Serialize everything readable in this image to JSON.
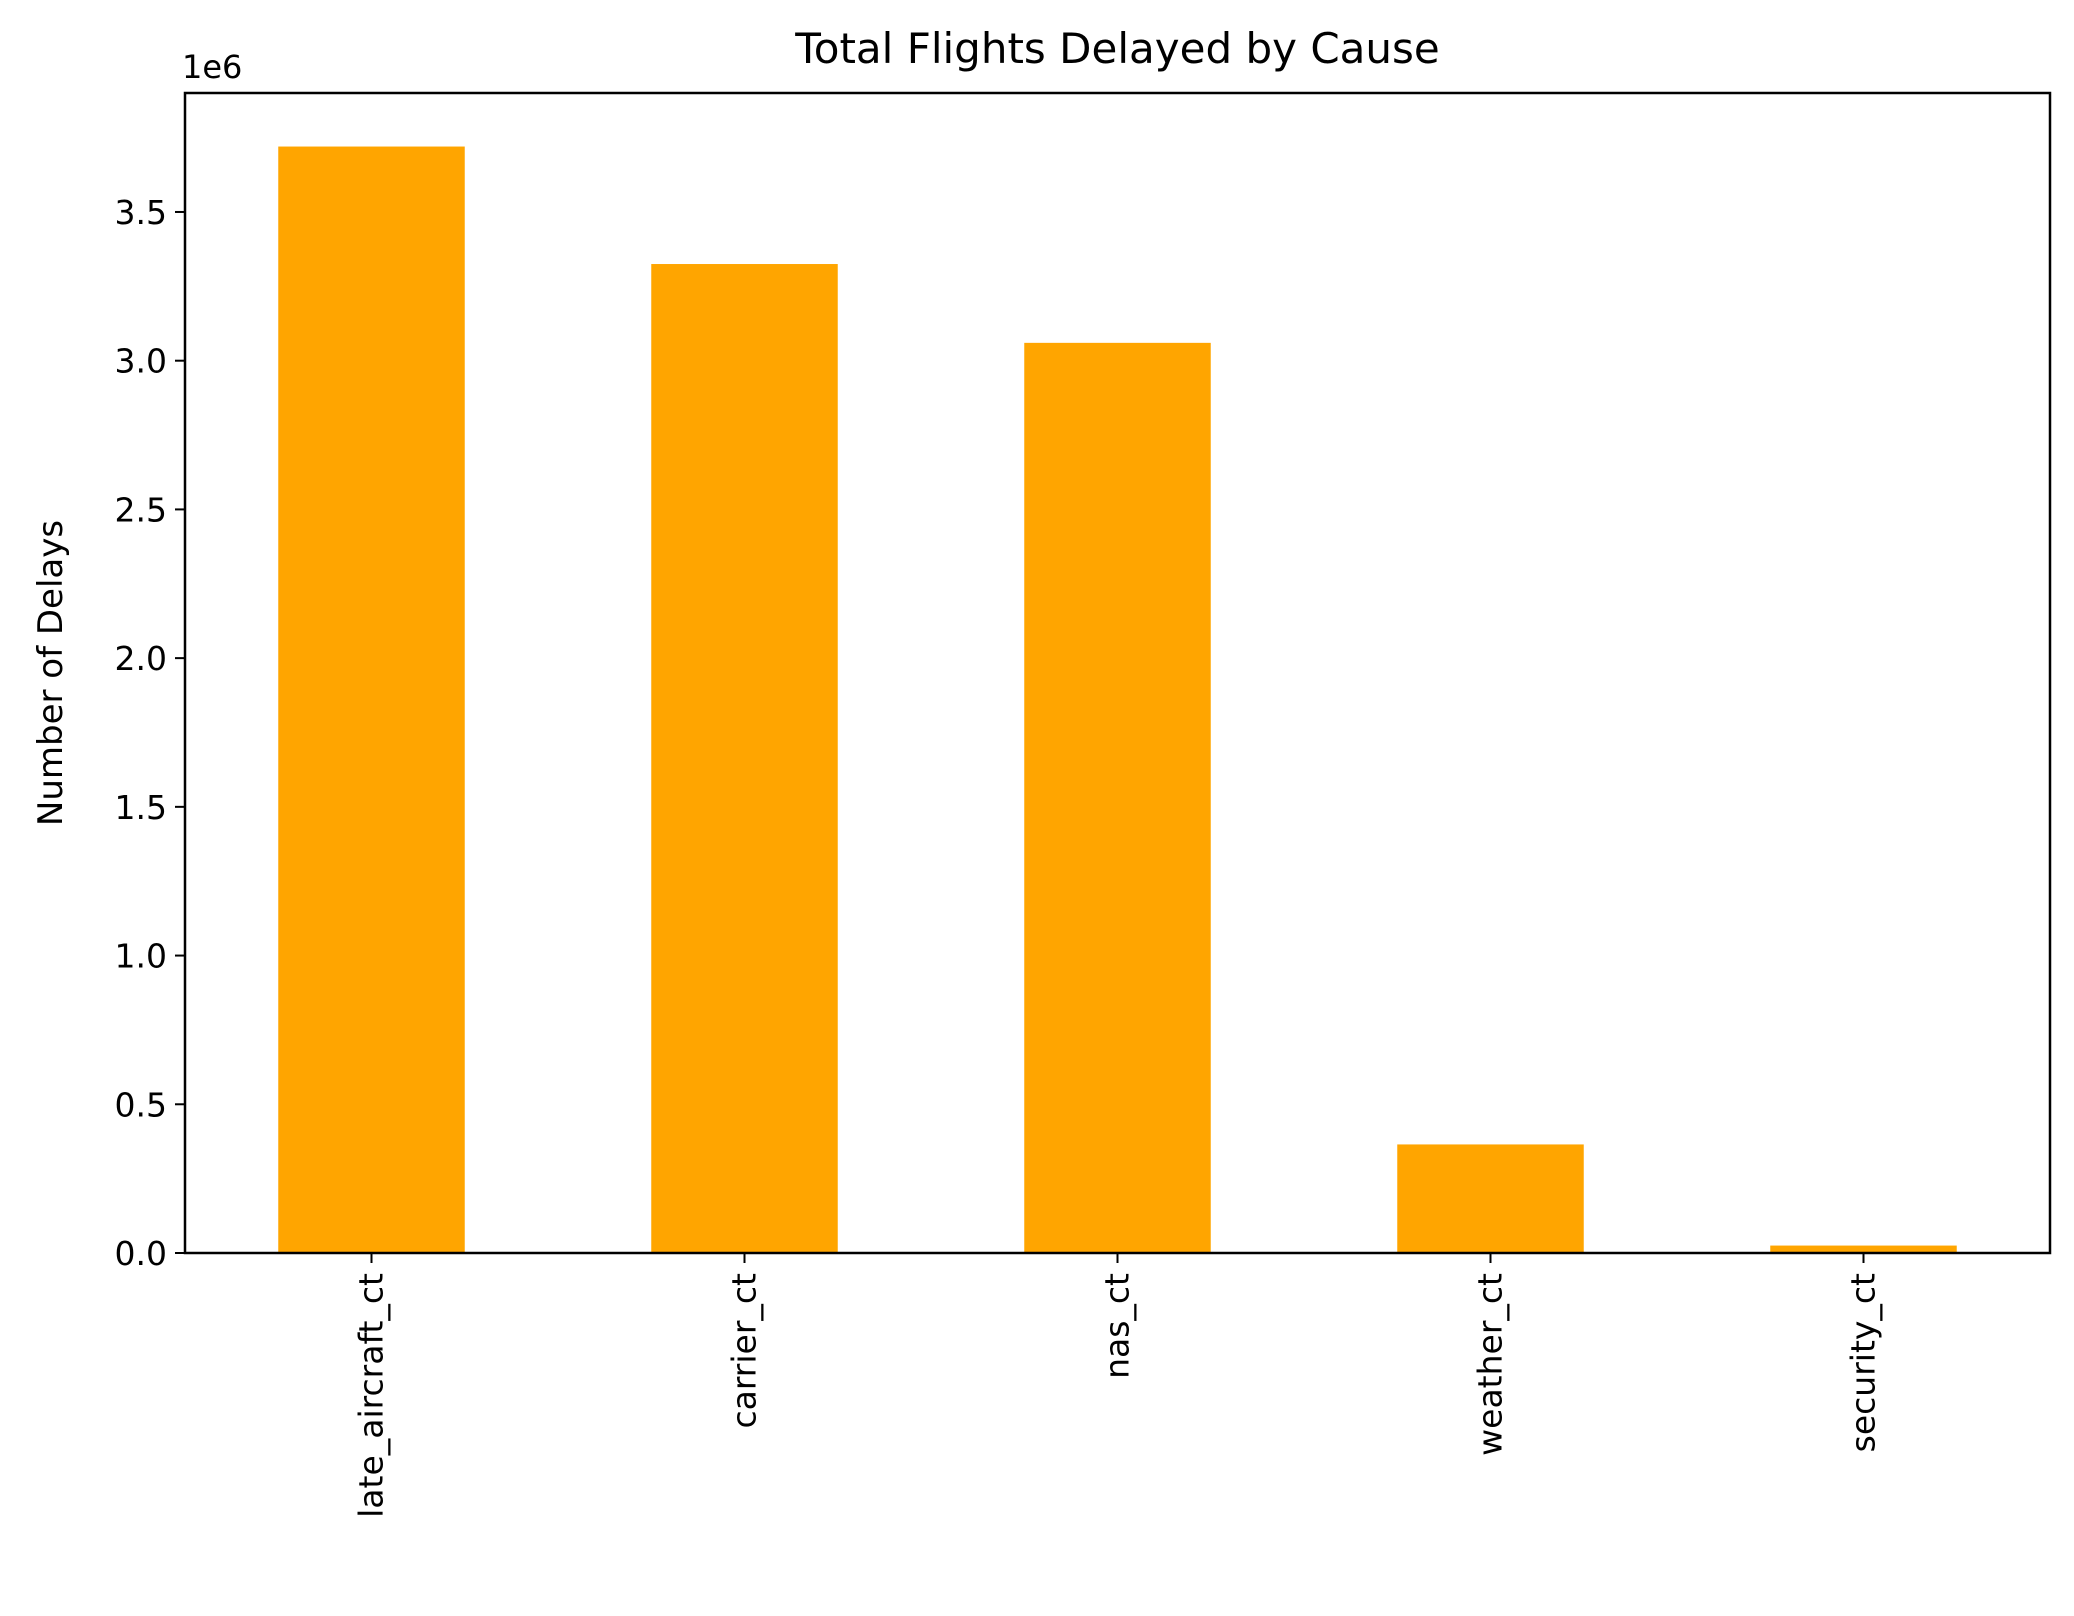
{
  "chart_data": {
    "type": "bar",
    "title": "Total Flights Delayed by Cause",
    "xlabel": "",
    "ylabel": "Number of Delays",
    "y_offset_label": "1e6",
    "categories": [
      "late_aircraft_ct",
      "carrier_ct",
      "nas_ct",
      "weather_ct",
      "security_ct"
    ],
    "values": [
      3720000,
      3325000,
      3060000,
      365000,
      25000
    ],
    "ylim": [
      0,
      3900000
    ],
    "yticks": [
      0,
      500000,
      1000000,
      1500000,
      2000000,
      2500000,
      3000000,
      3500000
    ],
    "ytick_labels": [
      "0.0",
      "0.5",
      "1.0",
      "1.5",
      "2.0",
      "2.5",
      "3.0",
      "3.5"
    ],
    "bar_color": "#ffa500",
    "grid": false,
    "legend": false
  }
}
